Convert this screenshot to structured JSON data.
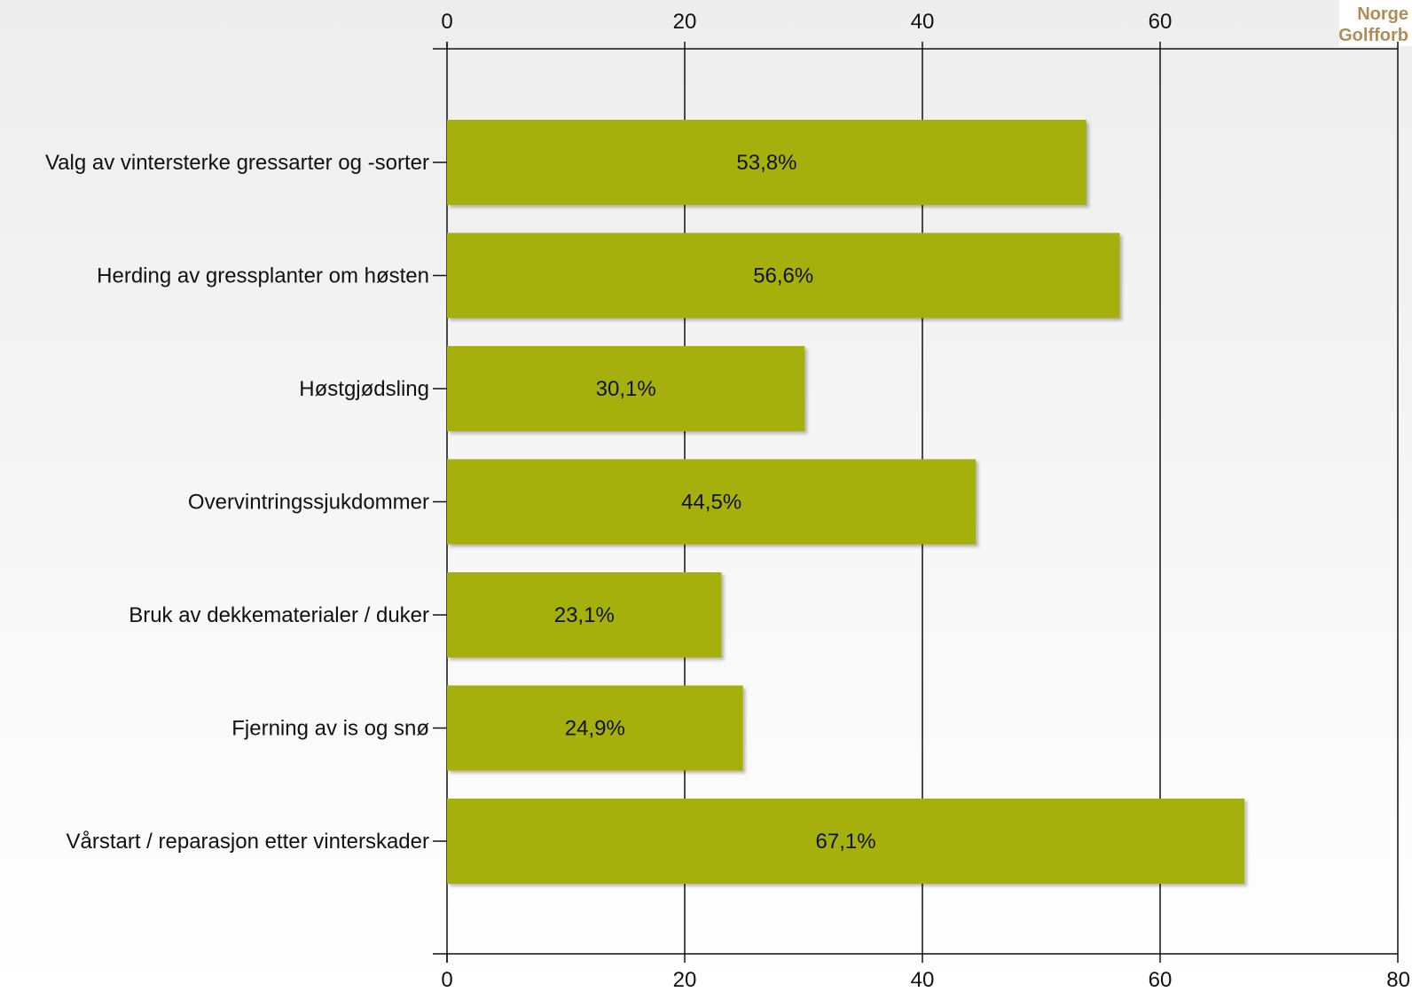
{
  "logo": {
    "line1": "Norge",
    "line2": "Golfforb"
  },
  "chart_data": {
    "type": "bar",
    "orientation": "horizontal",
    "title": "",
    "xlabel": "",
    "ylabel": "",
    "xlim": [
      0,
      80
    ],
    "ticks": [
      0,
      20,
      40,
      60,
      80
    ],
    "tick_labels_top": [
      "0",
      "20",
      "40",
      "60",
      ""
    ],
    "tick_labels_bottom": [
      "0",
      "20",
      "40",
      "60",
      "80"
    ],
    "grid": true,
    "bar_color": "#a5b00f",
    "categories": [
      "Valg av vintersterke gressarter og -sorter",
      "Herding av gressplanter om høsten",
      "Høstgjødsling",
      "Overvintringssjukdommer",
      "Bruk av dekkematerialer / duker",
      "Fjerning av is og snø",
      "Vårstart / reparasjon etter vinterskader"
    ],
    "values": [
      53.8,
      56.6,
      30.1,
      44.5,
      23.1,
      24.9,
      67.1
    ],
    "value_labels": [
      "53,8%",
      "56,6%",
      "30,1%",
      "44,5%",
      "23,1%",
      "24,9%",
      "67,1%"
    ]
  }
}
